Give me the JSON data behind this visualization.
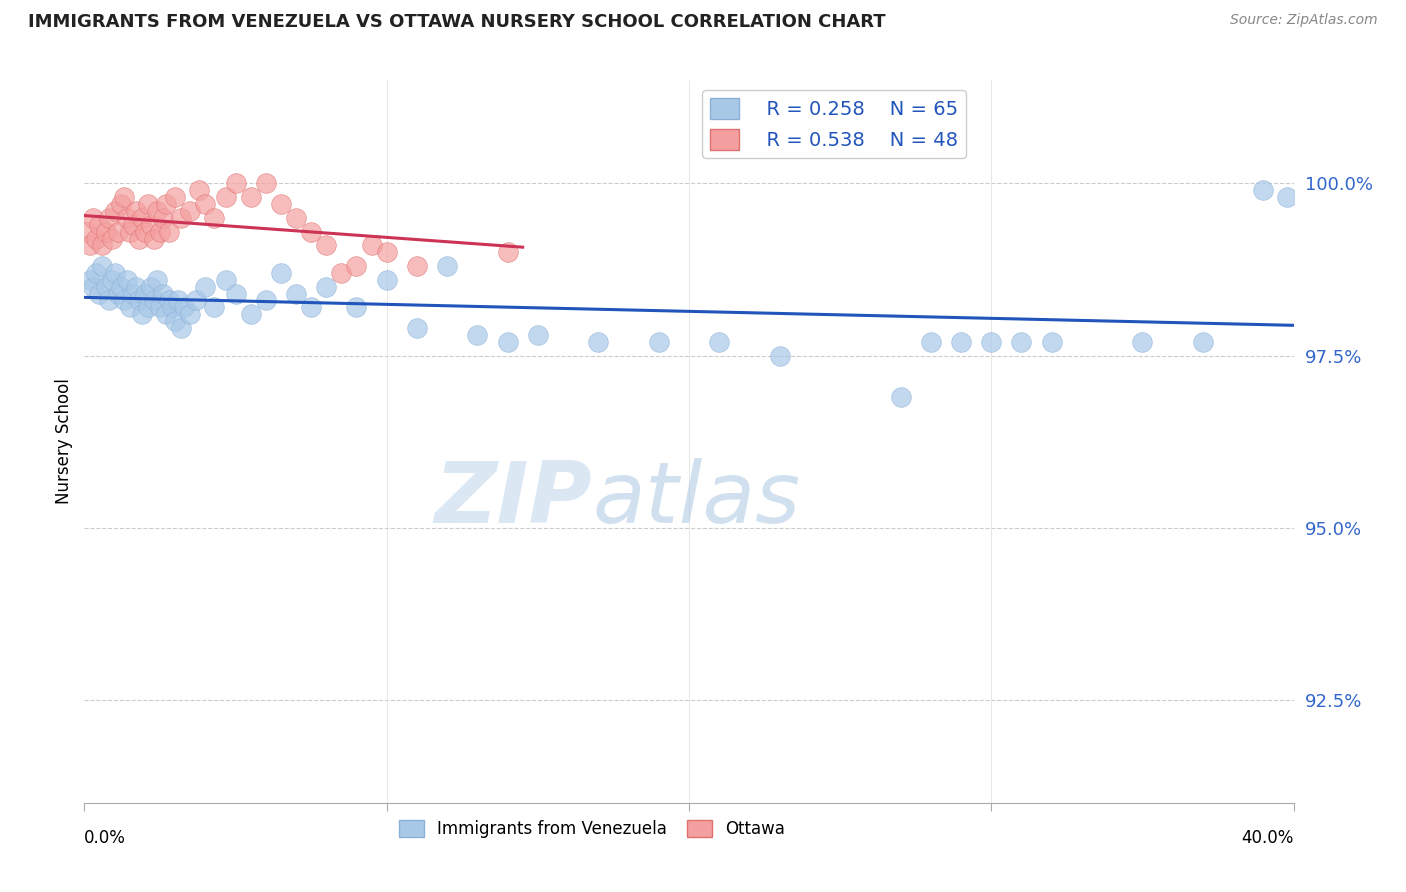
{
  "title": "IMMIGRANTS FROM VENEZUELA VS OTTAWA NURSERY SCHOOL CORRELATION CHART",
  "source": "Source: ZipAtlas.com",
  "ylabel": "Nursery School",
  "ytick_values": [
    92.5,
    95.0,
    97.5,
    100.0
  ],
  "xlim": [
    0.0,
    40.0
  ],
  "ylim": [
    91.0,
    101.5
  ],
  "legend_blue_r": "R = 0.258",
  "legend_blue_n": "N = 65",
  "legend_pink_r": "R = 0.538",
  "legend_pink_n": "N = 48",
  "watermark_zip": "ZIP",
  "watermark_atlas": "atlas",
  "blue_color": "#a8c8e8",
  "pink_color": "#f4a0a0",
  "blue_line_color": "#2255bb",
  "pink_line_color": "#cc3355",
  "blue_scatter_x": [
    0.2,
    0.3,
    0.4,
    0.5,
    0.6,
    0.7,
    0.8,
    0.9,
    1.0,
    1.1,
    1.2,
    1.3,
    1.4,
    1.5,
    1.6,
    1.7,
    1.8,
    1.9,
    2.0,
    2.1,
    2.2,
    2.3,
    2.4,
    2.5,
    2.6,
    2.7,
    2.8,
    2.9,
    3.0,
    3.1,
    3.2,
    3.3,
    3.5,
    3.7,
    4.0,
    4.3,
    4.7,
    5.0,
    5.5,
    6.0,
    6.5,
    7.0,
    7.5,
    8.0,
    9.0,
    10.0,
    11.0,
    12.0,
    13.0,
    14.0,
    15.0,
    17.0,
    19.0,
    21.0,
    23.0,
    27.0,
    28.0,
    29.0,
    30.0,
    31.0,
    32.0,
    35.0,
    37.0,
    39.0,
    39.8
  ],
  "blue_scatter_y": [
    98.6,
    98.5,
    98.7,
    98.4,
    98.8,
    98.5,
    98.3,
    98.6,
    98.7,
    98.4,
    98.5,
    98.3,
    98.6,
    98.2,
    98.4,
    98.5,
    98.3,
    98.1,
    98.4,
    98.2,
    98.5,
    98.3,
    98.6,
    98.2,
    98.4,
    98.1,
    98.3,
    98.2,
    98.0,
    98.3,
    97.9,
    98.2,
    98.1,
    98.3,
    98.5,
    98.2,
    98.6,
    98.4,
    98.1,
    98.3,
    98.7,
    98.4,
    98.2,
    98.5,
    98.2,
    98.6,
    97.9,
    98.8,
    97.8,
    97.7,
    97.8,
    97.7,
    97.7,
    97.7,
    97.5,
    96.9,
    97.7,
    97.7,
    97.7,
    97.7,
    97.7,
    97.7,
    97.7,
    99.9,
    99.8
  ],
  "pink_scatter_x": [
    0.1,
    0.2,
    0.3,
    0.4,
    0.5,
    0.6,
    0.7,
    0.8,
    0.9,
    1.0,
    1.1,
    1.2,
    1.3,
    1.4,
    1.5,
    1.6,
    1.7,
    1.8,
    1.9,
    2.0,
    2.1,
    2.2,
    2.3,
    2.4,
    2.5,
    2.6,
    2.7,
    2.8,
    3.0,
    3.2,
    3.5,
    3.8,
    4.0,
    4.3,
    4.7,
    5.0,
    5.5,
    6.0,
    6.5,
    7.0,
    7.5,
    8.0,
    8.5,
    9.0,
    9.5,
    10.0,
    11.0,
    14.0
  ],
  "pink_scatter_y": [
    99.3,
    99.1,
    99.5,
    99.2,
    99.4,
    99.1,
    99.3,
    99.5,
    99.2,
    99.6,
    99.3,
    99.7,
    99.8,
    99.5,
    99.3,
    99.4,
    99.6,
    99.2,
    99.5,
    99.3,
    99.7,
    99.4,
    99.2,
    99.6,
    99.3,
    99.5,
    99.7,
    99.3,
    99.8,
    99.5,
    99.6,
    99.9,
    99.7,
    99.5,
    99.8,
    100.0,
    99.8,
    100.0,
    99.7,
    99.5,
    99.3,
    99.1,
    98.7,
    98.8,
    99.1,
    99.0,
    98.8,
    99.0
  ]
}
